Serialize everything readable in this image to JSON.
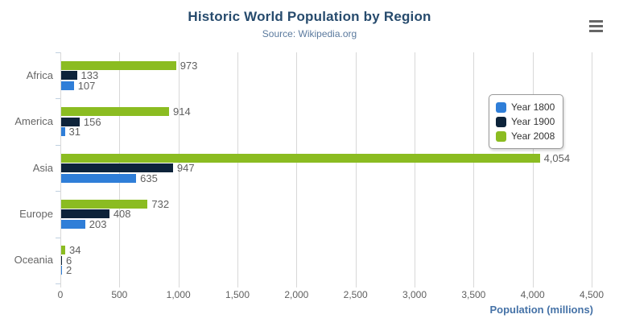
{
  "chart_data": {
    "type": "bar",
    "title": "Historic World Population by Region",
    "subtitle": "Source: Wikipedia.org",
    "xlabel": "Population (millions)",
    "categories": [
      "Africa",
      "America",
      "Asia",
      "Europe",
      "Oceania"
    ],
    "series": [
      {
        "name": "Year 1800",
        "color": "#2f7ed8",
        "values": [
          107,
          31,
          635,
          203,
          2
        ]
      },
      {
        "name": "Year 1900",
        "color": "#0d233a",
        "values": [
          133,
          156,
          947,
          408,
          6
        ]
      },
      {
        "name": "Year 2008",
        "color": "#8bbc21",
        "values": [
          973,
          914,
          4054,
          732,
          34
        ]
      }
    ],
    "xlim": [
      0,
      4500
    ],
    "xticks": [
      0,
      500,
      1000,
      1500,
      2000,
      2500,
      3000,
      3500,
      4000,
      4500
    ],
    "grid": true,
    "legend_position": "right",
    "bar_order_top_to_bottom": [
      "Year 2008",
      "Year 1900",
      "Year 1800"
    ],
    "data_labels": true
  },
  "ui": {
    "menu_icon": "hamburger-menu-icon",
    "colors": {
      "title": "#274b6d",
      "subtitle": "#5b7a9e",
      "axis_title": "#4572a7",
      "value_labels": "#606060",
      "category_labels": "#666666",
      "tick_labels": "#606060",
      "gridline": "#d8d8d8",
      "category_axis_line": "#c0d0e0",
      "legend_border": "#999999",
      "legend_text": "#333333",
      "menu_icon_color": "#666666",
      "background": "#ffffff"
    }
  }
}
